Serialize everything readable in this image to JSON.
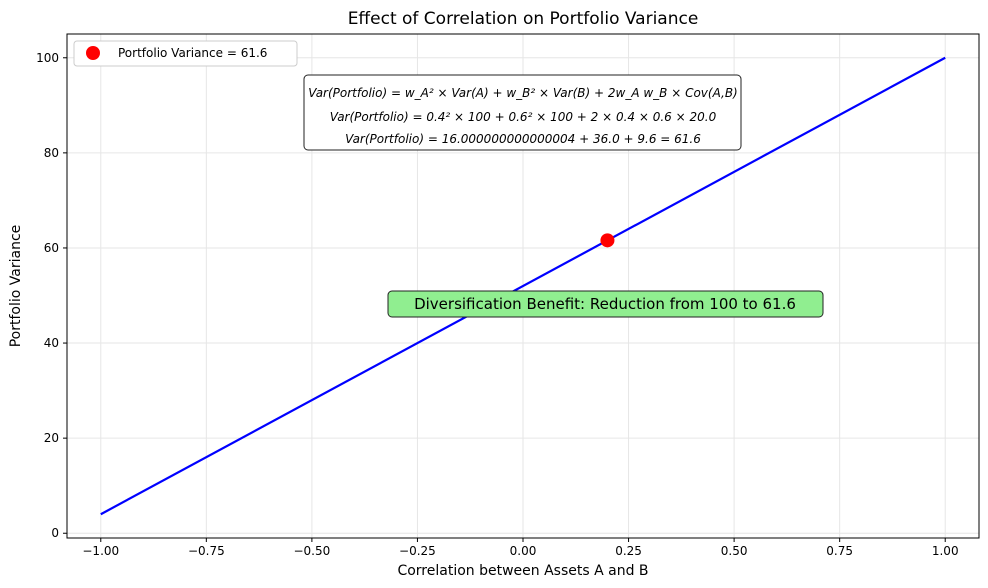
{
  "chart_data": {
    "type": "line",
    "title": "Effect of Correlation on Portfolio Variance",
    "xlabel": "Correlation between Assets A and B",
    "ylabel": "Portfolio Variance",
    "xlim": [
      -1.08,
      1.08
    ],
    "ylim": [
      -1,
      105
    ],
    "x_ticks": [
      -1.0,
      -0.75,
      -0.5,
      -0.25,
      0.0,
      0.25,
      0.5,
      0.75,
      1.0
    ],
    "x_tick_labels": [
      "−1.00",
      "−0.75",
      "−0.50",
      "−0.25",
      "0.00",
      "0.25",
      "0.50",
      "0.75",
      "1.00"
    ],
    "y_ticks": [
      0,
      20,
      40,
      60,
      80,
      100
    ],
    "y_tick_labels": [
      "0",
      "20",
      "40",
      "60",
      "80",
      "100"
    ],
    "grid": true,
    "legend_position": "top-left",
    "series": [
      {
        "kind": "line",
        "color": "#0000ff",
        "x": [
          -1.0,
          1.0
        ],
        "y": [
          4.0,
          100.0
        ]
      },
      {
        "kind": "scatter",
        "name": "Portfolio Variance = 61.6",
        "color": "#ff0000",
        "x": [
          0.2
        ],
        "y": [
          61.6
        ]
      }
    ],
    "annotations": {
      "formula_lines": [
        "Var(Portfolio) = w_A² × Var(A) + w_B² × Var(B) + 2w_A w_B × Cov(A,B)",
        "Var(Portfolio) = 0.4² × 100 + 0.6² × 100 + 2 × 0.4 × 0.6 × 20.0",
        "Var(Portfolio) = 16.000000000000004 + 36.0 + 9.6 = 61.6"
      ],
      "benefit_text": "Diversification Benefit: Reduction from 100 to 61.6",
      "benefit_color": "#90ee90"
    }
  }
}
